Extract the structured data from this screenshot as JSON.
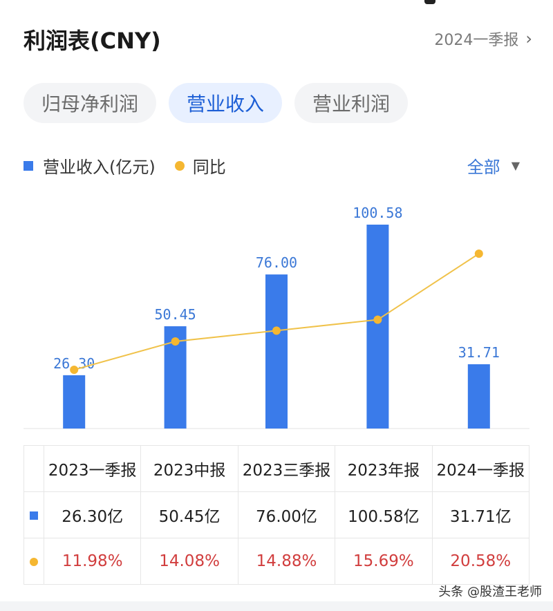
{
  "header": {
    "title": "利润表(CNY)",
    "period": "2024一季报"
  },
  "tabs": [
    {
      "label": "归母净利润"
    },
    {
      "label": "营业收入"
    },
    {
      "label": "营业利润"
    }
  ],
  "legend": {
    "bars": "营业收入(亿元)",
    "line": "同比"
  },
  "filter": {
    "label": "全部"
  },
  "colors": {
    "bar": "#3a7bea",
    "line": "#f0c24a",
    "dot": "#f5b731",
    "pct": "#d13d3d",
    "active_tab": "#1d5fd6"
  },
  "chart_data": {
    "type": "bar",
    "categories": [
      "2023一季报",
      "2023中报",
      "2023三季报",
      "2023年报",
      "2024一季报"
    ],
    "series": [
      {
        "name": "营业收入(亿元)",
        "type": "bar",
        "values": [
          26.3,
          50.45,
          76.0,
          100.58,
          31.71
        ],
        "labels": [
          "26.30",
          "50.45",
          "76.00",
          "100.58",
          "31.71"
        ]
      },
      {
        "name": "同比",
        "type": "line",
        "values": [
          11.98,
          14.08,
          14.88,
          15.69,
          20.58
        ]
      }
    ],
    "grid": false,
    "legend_position": "top-left"
  },
  "table": {
    "headers": [
      "2023一季报",
      "2023中报",
      "2023三季报",
      "2023年报",
      "2024一季报"
    ],
    "revenue": [
      "26.30亿",
      "50.45亿",
      "76.00亿",
      "100.58亿",
      "31.71亿"
    ],
    "yoy": [
      "11.98%",
      "14.08%",
      "14.88%",
      "15.69%",
      "20.58%"
    ]
  },
  "watermark": "头条 @股渣王老师"
}
